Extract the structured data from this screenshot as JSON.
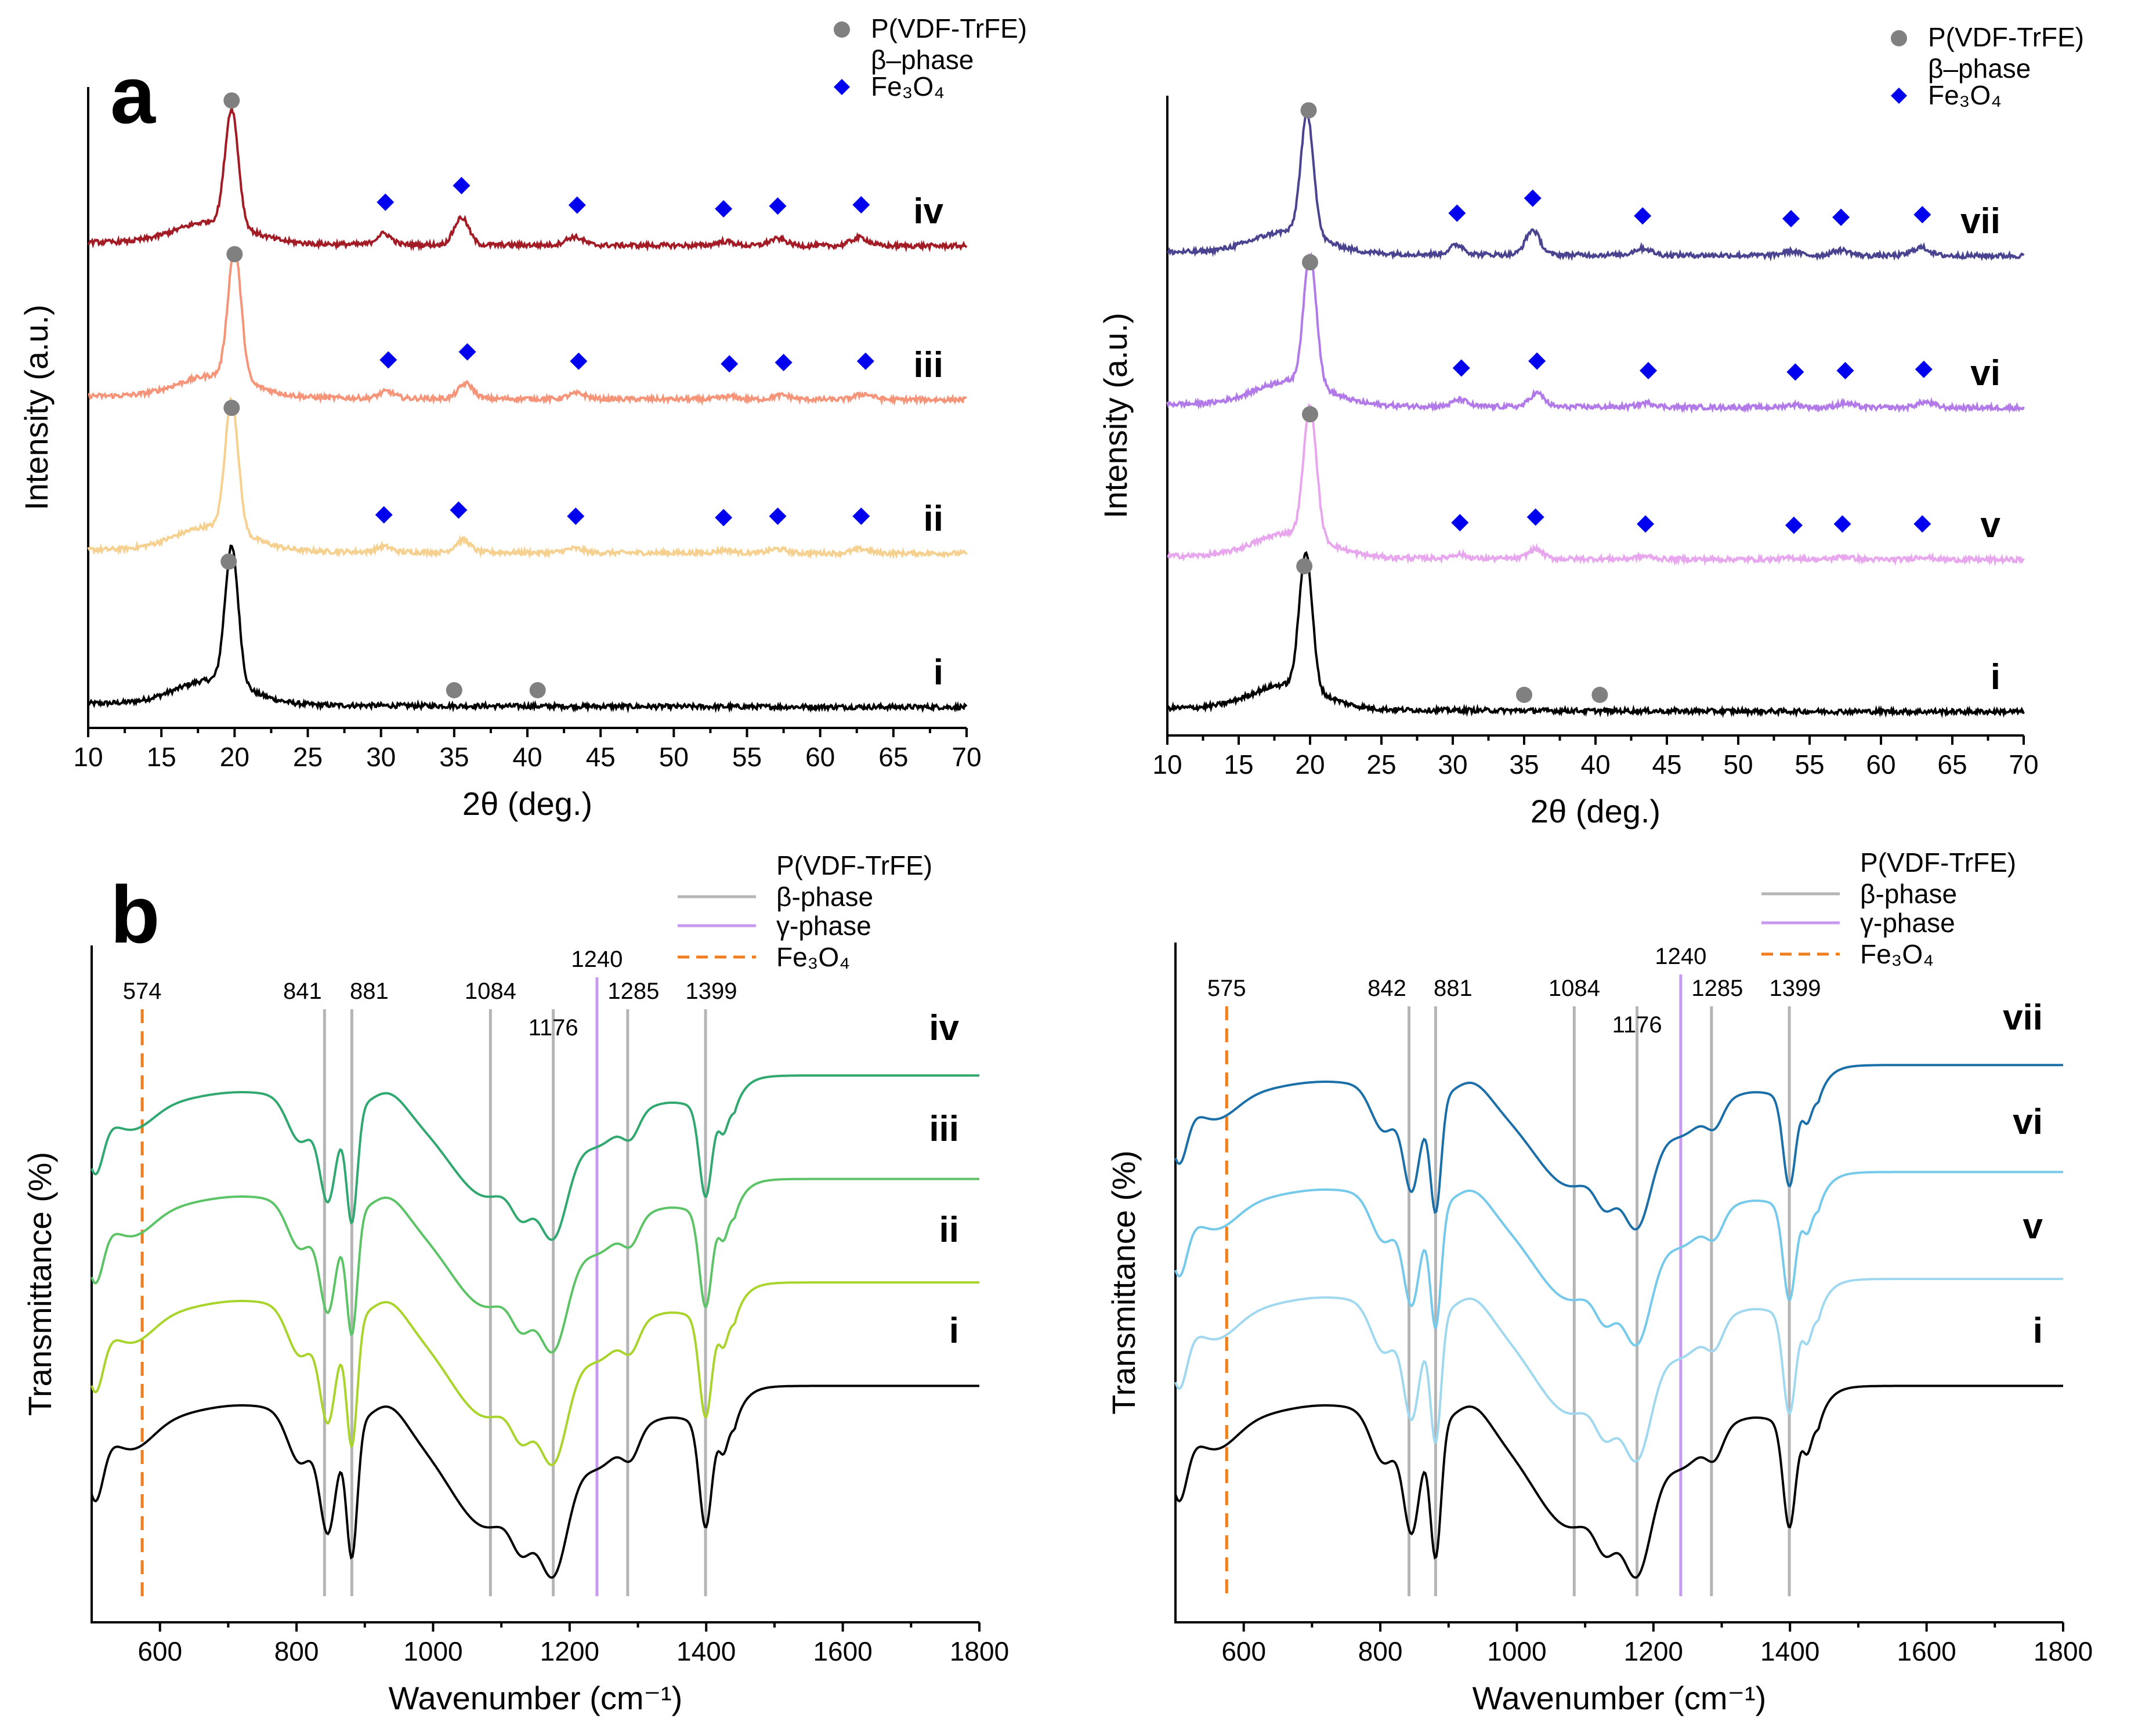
{
  "figure_labels": {
    "a": "a",
    "b": "b"
  },
  "colors": {
    "ii": "#f5d08f",
    "iii": "#f59478",
    "iv": "#a31c25",
    "v": "#e8a6ee",
    "vi": "#b27ae8",
    "vii": "#4a4490",
    "i": "#000000",
    "ftir_ii": "#a8d42c",
    "ftir_iii": "#5cc466",
    "ftir_iv": "#30a870",
    "ftir_v": "#9fd8ef",
    "ftir_vi": "#75c9ea",
    "ftir_vii": "#1b6fa9",
    "beta_line": "#b5b5b5",
    "gamma_line": "#c79af0",
    "fe3o4_line": "#f07d1e",
    "beta_marker": "#808080",
    "fe3o4_marker": "#0000ee"
  },
  "chart_data": [
    {
      "id": "xrd_left",
      "type": "line",
      "xlabel": "2θ (deg.)",
      "ylabel": "Intensity (a.u.)",
      "xlim": [
        10,
        70
      ],
      "xticks": [
        10,
        15,
        20,
        25,
        30,
        35,
        40,
        45,
        50,
        55,
        60,
        65,
        70
      ],
      "yticks": [],
      "legend": {
        "position": "top-right",
        "entries": [
          {
            "label": "P(VDF-TrFE)",
            "marker": "circle"
          },
          {
            "label": "β–phase",
            "marker": "none"
          },
          {
            "label": "Fe₃O₄",
            "marker": "diamond"
          }
        ]
      },
      "series": [
        {
          "name": "i",
          "color": "#000000",
          "offset": 0.0,
          "peaks": [
            [
              19.8,
              1.0,
              0.45
            ],
            [
              18.5,
              0.18,
              2.5
            ]
          ],
          "beta_markers": [
            19.6,
            35.0,
            40.7
          ],
          "fe3o4_markers": []
        },
        {
          "name": "ii",
          "color": "#f5d08f",
          "offset": 1.0,
          "peaks": [
            [
              19.8,
              0.95,
              0.45
            ],
            [
              18.5,
              0.18,
              2.5
            ],
            [
              30.2,
              0.04,
              0.5
            ],
            [
              35.6,
              0.09,
              0.5
            ],
            [
              43.2,
              0.03,
              0.6
            ],
            [
              53.5,
              0.02,
              0.6
            ],
            [
              57.1,
              0.03,
              0.6
            ],
            [
              62.8,
              0.03,
              0.6
            ]
          ],
          "beta_markers": [
            19.8
          ],
          "fe3o4_markers": [
            30.2,
            35.3,
            43.3,
            53.4,
            57.1,
            62.8
          ]
        },
        {
          "name": "iii",
          "color": "#f59478",
          "offset": 2.0,
          "peaks": [
            [
              20.0,
              0.95,
              0.45
            ],
            [
              18.7,
              0.16,
              2.5
            ],
            [
              30.4,
              0.05,
              0.5
            ],
            [
              35.8,
              0.11,
              0.5
            ],
            [
              43.4,
              0.04,
              0.6
            ],
            [
              53.8,
              0.02,
              0.6
            ],
            [
              57.4,
              0.03,
              0.6
            ],
            [
              63.0,
              0.04,
              0.6
            ]
          ],
          "beta_markers": [
            20.0
          ],
          "fe3o4_markers": [
            30.5,
            35.9,
            43.5,
            53.8,
            57.5,
            63.1
          ]
        },
        {
          "name": "iv",
          "color": "#a31c25",
          "offset": 3.0,
          "peaks": [
            [
              19.8,
              0.85,
              0.45
            ],
            [
              18.5,
              0.16,
              2.5
            ],
            [
              30.2,
              0.08,
              0.5
            ],
            [
              35.5,
              0.2,
              0.5
            ],
            [
              43.2,
              0.06,
              0.6
            ],
            [
              53.5,
              0.03,
              0.6
            ],
            [
              57.1,
              0.05,
              0.6
            ],
            [
              62.7,
              0.06,
              0.6
            ]
          ],
          "beta_markers": [
            19.8
          ],
          "fe3o4_markers": [
            30.3,
            35.5,
            43.4,
            53.4,
            57.1,
            62.8
          ]
        }
      ],
      "curve_labels": [
        "i",
        "ii",
        "iii",
        "iv"
      ]
    },
    {
      "id": "xrd_right",
      "type": "line",
      "xlabel": "2θ (deg.)",
      "ylabel": "Intensity (a.u.)",
      "xlim": [
        10,
        70
      ],
      "xticks": [
        10,
        15,
        20,
        25,
        30,
        35,
        40,
        45,
        50,
        55,
        60,
        65,
        70
      ],
      "yticks": [],
      "legend": {
        "position": "top-right",
        "entries": [
          {
            "label": "P(VDF-TrFE)",
            "marker": "circle"
          },
          {
            "label": "β–phase",
            "marker": "none"
          },
          {
            "label": "Fe₃O₄",
            "marker": "diamond"
          }
        ]
      },
      "series": [
        {
          "name": "i",
          "color": "#000000",
          "offset": 0.0,
          "peaks": [
            [
              19.7,
              1.0,
              0.45
            ],
            [
              18.4,
              0.18,
              2.5
            ]
          ],
          "beta_markers": [
            19.6,
            35.0,
            40.3
          ],
          "fe3o4_markers": []
        },
        {
          "name": "v",
          "color": "#e8a6ee",
          "offset": 1.0,
          "peaks": [
            [
              20.0,
              0.95,
              0.45
            ],
            [
              18.7,
              0.18,
              2.5
            ],
            [
              30.4,
              0.03,
              0.5
            ],
            [
              35.8,
              0.07,
              0.5
            ],
            [
              43.4,
              0.02,
              0.6
            ],
            [
              53.8,
              0.01,
              0.6
            ],
            [
              57.4,
              0.02,
              0.6
            ],
            [
              62.9,
              0.02,
              0.6
            ]
          ],
          "beta_markers": [
            20.0
          ],
          "fe3o4_markers": [
            30.5,
            35.8,
            43.5,
            53.9,
            57.3,
            62.9
          ]
        },
        {
          "name": "vi",
          "color": "#b27ae8",
          "offset": 2.0,
          "peaks": [
            [
              20.0,
              0.95,
              0.45
            ],
            [
              18.7,
              0.18,
              2.5
            ],
            [
              30.5,
              0.05,
              0.5
            ],
            [
              35.9,
              0.1,
              0.5
            ],
            [
              43.6,
              0.03,
              0.6
            ],
            [
              53.9,
              0.02,
              0.6
            ],
            [
              57.5,
              0.03,
              0.6
            ],
            [
              63.1,
              0.04,
              0.6
            ]
          ],
          "beta_markers": [
            20.0
          ],
          "fe3o4_markers": [
            30.6,
            35.9,
            43.7,
            54.0,
            57.5,
            63.0
          ]
        },
        {
          "name": "vii",
          "color": "#4a4490",
          "offset": 3.0,
          "peaks": [
            [
              19.8,
              0.88,
              0.45
            ],
            [
              18.5,
              0.16,
              2.5
            ],
            [
              30.3,
              0.07,
              0.5
            ],
            [
              35.6,
              0.18,
              0.5
            ],
            [
              43.3,
              0.05,
              0.6
            ],
            [
              53.7,
              0.03,
              0.6
            ],
            [
              57.2,
              0.04,
              0.6
            ],
            [
              62.8,
              0.06,
              0.6
            ]
          ],
          "beta_markers": [
            19.9
          ],
          "fe3o4_markers": [
            30.3,
            35.6,
            43.3,
            53.7,
            57.2,
            62.9
          ]
        }
      ],
      "curve_labels": [
        "i",
        "v",
        "vi",
        "vii"
      ]
    },
    {
      "id": "ftir_left",
      "type": "line",
      "xlabel": "Wavenumber (cm⁻¹)",
      "ylabel": "Transmittance (%)",
      "xlim": [
        500,
        1800
      ],
      "xticks": [
        600,
        800,
        1000,
        1200,
        1400,
        1600,
        1800
      ],
      "yticks": [],
      "legend": {
        "position": "top-right",
        "entries": [
          {
            "label": "P(VDF-TrFE)",
            "style": "none"
          },
          {
            "label": "β-phase",
            "style": "solid-gray"
          },
          {
            "label": "γ-phase",
            "style": "solid-purple"
          },
          {
            "label": "Fe₃O₄",
            "style": "dashed-orange"
          }
        ]
      },
      "reference_lines": [
        {
          "x": 574,
          "label": "574",
          "phase": "Fe3O4"
        },
        {
          "x": 841,
          "label": "841",
          "phase": "beta"
        },
        {
          "x": 881,
          "label": "881",
          "phase": "beta"
        },
        {
          "x": 1084,
          "label": "1084",
          "phase": "beta"
        },
        {
          "x": 1176,
          "label": "1176",
          "phase": "beta"
        },
        {
          "x": 1240,
          "label": "1240",
          "phase": "gamma"
        },
        {
          "x": 1285,
          "label": "1285",
          "phase": "beta"
        },
        {
          "x": 1399,
          "label": "1399",
          "phase": "beta"
        }
      ],
      "series": [
        {
          "name": "i",
          "color": "#000000",
          "offset": 0
        },
        {
          "name": "ii",
          "color": "#a8d42c",
          "offset": 1
        },
        {
          "name": "iii",
          "color": "#5cc466",
          "offset": 2
        },
        {
          "name": "iv",
          "color": "#30a870",
          "offset": 3
        }
      ],
      "curve_labels": [
        "i",
        "ii",
        "iii",
        "iv"
      ]
    },
    {
      "id": "ftir_right",
      "type": "line",
      "xlabel": "Wavenumber (cm⁻¹)",
      "ylabel": "Transmittance (%)",
      "xlim": [
        500,
        1800
      ],
      "xticks": [
        600,
        800,
        1000,
        1200,
        1400,
        1600,
        1800
      ],
      "yticks": [],
      "legend": {
        "position": "top-right",
        "entries": [
          {
            "label": "P(VDF-TrFE)",
            "style": "none"
          },
          {
            "label": "β-phase",
            "style": "solid-gray"
          },
          {
            "label": "γ-phase",
            "style": "solid-purple"
          },
          {
            "label": "Fe₃O₄",
            "style": "dashed-orange"
          }
        ]
      },
      "reference_lines": [
        {
          "x": 575,
          "label": "575",
          "phase": "Fe3O4"
        },
        {
          "x": 842,
          "label": "842",
          "phase": "beta"
        },
        {
          "x": 881,
          "label": "881",
          "phase": "beta"
        },
        {
          "x": 1084,
          "label": "1084",
          "phase": "beta"
        },
        {
          "x": 1176,
          "label": "1176",
          "phase": "beta"
        },
        {
          "x": 1240,
          "label": "1240",
          "phase": "gamma"
        },
        {
          "x": 1285,
          "label": "1285",
          "phase": "beta"
        },
        {
          "x": 1399,
          "label": "1399",
          "phase": "beta"
        }
      ],
      "series": [
        {
          "name": "i",
          "color": "#000000",
          "offset": 0
        },
        {
          "name": "v",
          "color": "#9fd8ef",
          "offset": 1
        },
        {
          "name": "vi",
          "color": "#75c9ea",
          "offset": 2
        },
        {
          "name": "vii",
          "color": "#1b6fa9",
          "offset": 3
        }
      ],
      "curve_labels": [
        "i",
        "v",
        "vi",
        "vii"
      ]
    }
  ]
}
